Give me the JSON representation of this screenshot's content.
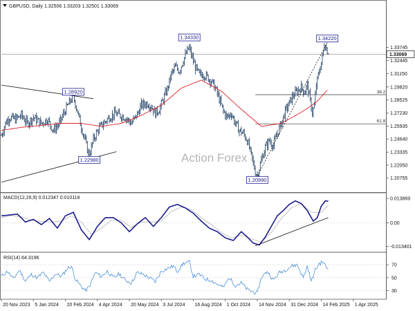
{
  "chart_data": [
    {
      "type": "candlestick",
      "header": "GBPUSD, Daily  1.32506 1.33203 1.32501 1.33069",
      "watermark": "Action Forex",
      "ylim": [
        1.195,
        1.375
      ],
      "y_ticks": [
        "1.33745",
        "1.32445",
        "1.31150",
        "1.29820",
        "1.28525",
        "1.27230",
        "1.25935",
        "1.24640",
        "1.23335",
        "1.22050",
        "1.20755"
      ],
      "last_price": "1.33069",
      "moving_average_color": "#e0202a",
      "price_path": [
        [
          0,
          1.25
        ],
        [
          4,
          1.262
        ],
        [
          8,
          1.268
        ],
        [
          14,
          1.266
        ],
        [
          20,
          1.27
        ],
        [
          26,
          1.262
        ],
        [
          32,
          1.268
        ],
        [
          40,
          1.262
        ],
        [
          46,
          1.266
        ],
        [
          52,
          1.255
        ],
        [
          58,
          1.262
        ],
        [
          62,
          1.271
        ],
        [
          66,
          1.279
        ],
        [
          70,
          1.286
        ],
        [
          72,
          1.289
        ],
        [
          75,
          1.278
        ],
        [
          79,
          1.262
        ],
        [
          83,
          1.248
        ],
        [
          86,
          1.236
        ],
        [
          88,
          1.23
        ],
        [
          92,
          1.246
        ],
        [
          97,
          1.256
        ],
        [
          102,
          1.262
        ],
        [
          108,
          1.268
        ],
        [
          114,
          1.272
        ],
        [
          118,
          1.27
        ],
        [
          124,
          1.268
        ],
        [
          130,
          1.262
        ],
        [
          136,
          1.271
        ],
        [
          140,
          1.28
        ],
        [
          146,
          1.282
        ],
        [
          150,
          1.279
        ],
        [
          154,
          1.272
        ],
        [
          158,
          1.276
        ],
        [
          162,
          1.286
        ],
        [
          166,
          1.296
        ],
        [
          170,
          1.311
        ],
        [
          174,
          1.318
        ],
        [
          178,
          1.314
        ],
        [
          182,
          1.325
        ],
        [
          186,
          1.334
        ],
        [
          188,
          1.337
        ],
        [
          190,
          1.33
        ],
        [
          194,
          1.318
        ],
        [
          198,
          1.31
        ],
        [
          202,
          1.311
        ],
        [
          206,
          1.308
        ],
        [
          210,
          1.304
        ],
        [
          214,
          1.297
        ],
        [
          218,
          1.286
        ],
        [
          222,
          1.274
        ],
        [
          226,
          1.268
        ],
        [
          230,
          1.272
        ],
        [
          234,
          1.262
        ],
        [
          238,
          1.255
        ],
        [
          242,
          1.252
        ],
        [
          246,
          1.245
        ],
        [
          250,
          1.23
        ],
        [
          254,
          1.214
        ],
        [
          256,
          1.21
        ],
        [
          260,
          1.225
        ],
        [
          264,
          1.238
        ],
        [
          268,
          1.245
        ],
        [
          272,
          1.24
        ],
        [
          276,
          1.252
        ],
        [
          280,
          1.262
        ],
        [
          284,
          1.274
        ],
        [
          288,
          1.282
        ],
        [
          292,
          1.29
        ],
        [
          296,
          1.294
        ],
        [
          300,
          1.298
        ],
        [
          303,
          1.293
        ],
        [
          306,
          1.3
        ],
        [
          309,
          1.284
        ],
        [
          311,
          1.273
        ],
        [
          313,
          1.279
        ],
        [
          315,
          1.3
        ],
        [
          318,
          1.314
        ],
        [
          321,
          1.327
        ],
        [
          323,
          1.341
        ],
        [
          325,
          1.337
        ],
        [
          327,
          1.331
        ]
      ],
      "ma_path": [
        [
          0,
          1.255
        ],
        [
          20,
          1.258
        ],
        [
          40,
          1.26
        ],
        [
          60,
          1.262
        ],
        [
          80,
          1.262
        ],
        [
          100,
          1.259
        ],
        [
          120,
          1.262
        ],
        [
          140,
          1.27
        ],
        [
          160,
          1.28
        ],
        [
          180,
          1.297
        ],
        [
          200,
          1.305
        ],
        [
          220,
          1.294
        ],
        [
          240,
          1.276
        ],
        [
          260,
          1.259
        ],
        [
          280,
          1.262
        ],
        [
          300,
          1.273
        ],
        [
          315,
          1.283
        ],
        [
          327,
          1.296
        ]
      ],
      "labels": [
        {
          "text": "1.28920",
          "x": 72,
          "y": 1.2892
        },
        {
          "text": "1.22980",
          "x": 88,
          "y": 1.2298
        },
        {
          "text": "1.34330",
          "x": 188,
          "y": 1.3433
        },
        {
          "text": "1.20990",
          "x": 256,
          "y": 1.2099
        },
        {
          "text": "1.34220",
          "x": 326,
          "y": 1.3422
        }
      ],
      "fib_levels": [
        {
          "label": "38.2",
          "value": 1.2905
        },
        {
          "label": "61.8",
          "value": 1.2615
        }
      ],
      "horizontal_line": 1.3307,
      "trendlines": [
        {
          "from": [
            0,
            1.3
          ],
          "to": [
            92,
            1.2865
          ]
        },
        {
          "from": [
            0,
            1.2035
          ],
          "to": [
            115,
            1.2338
          ]
        },
        {
          "from": [
            256,
            1.2099
          ],
          "to": [
            326,
            1.3422
          ]
        }
      ]
    },
    {
      "type": "line",
      "header": "MACD(12,26,9) 0.012347 0.010118",
      "ylim": [
        -0.0155,
        0.0155
      ],
      "y_ticks": [
        "0.013869",
        "0.00",
        "-0.013401"
      ],
      "macd_color": "#1a1a8c",
      "signal_color": "#bbbbbb",
      "macd": [
        [
          0,
          0.004
        ],
        [
          8,
          0.0045
        ],
        [
          16,
          0.005
        ],
        [
          24,
          0.0005
        ],
        [
          32,
          0.002
        ],
        [
          40,
          -0.001
        ],
        [
          48,
          0.0025
        ],
        [
          56,
          -0.003
        ],
        [
          64,
          0.004
        ],
        [
          72,
          0.006
        ],
        [
          80,
          -0.004
        ],
        [
          88,
          -0.0095
        ],
        [
          96,
          -0.002
        ],
        [
          104,
          0.003
        ],
        [
          112,
          0.003
        ],
        [
          120,
          0.0
        ],
        [
          128,
          -0.005
        ],
        [
          136,
          -0.0005
        ],
        [
          144,
          0.003
        ],
        [
          152,
          -0.002
        ],
        [
          160,
          0.003
        ],
        [
          168,
          0.009
        ],
        [
          176,
          0.0105
        ],
        [
          184,
          0.0085
        ],
        [
          192,
          0.0055
        ],
        [
          200,
          0.001
        ],
        [
          208,
          -0.003
        ],
        [
          216,
          -0.005
        ],
        [
          224,
          -0.0085
        ],
        [
          232,
          -0.01
        ],
        [
          240,
          -0.005
        ],
        [
          246,
          -0.008
        ],
        [
          252,
          -0.0115
        ],
        [
          258,
          -0.0125
        ],
        [
          264,
          -0.008
        ],
        [
          270,
          -0.002
        ],
        [
          276,
          0.004
        ],
        [
          282,
          0.007
        ],
        [
          288,
          0.0105
        ],
        [
          294,
          0.0125
        ],
        [
          300,
          0.011
        ],
        [
          306,
          0.007
        ],
        [
          312,
          0.001
        ],
        [
          316,
          0.003
        ],
        [
          320,
          0.0095
        ],
        [
          324,
          0.0125
        ],
        [
          327,
          0.0123
        ]
      ],
      "signal": [
        [
          0,
          0.003
        ],
        [
          10,
          0.0042
        ],
        [
          20,
          0.0035
        ],
        [
          30,
          0.0015
        ],
        [
          40,
          0.0008
        ],
        [
          50,
          0.0005
        ],
        [
          60,
          0.001
        ],
        [
          70,
          0.004
        ],
        [
          80,
          0.0005
        ],
        [
          90,
          -0.0065
        ],
        [
          100,
          -0.003
        ],
        [
          110,
          0.0015
        ],
        [
          120,
          0.0015
        ],
        [
          130,
          -0.0025
        ],
        [
          140,
          0.0005
        ],
        [
          150,
          0.0005
        ],
        [
          160,
          0.001
        ],
        [
          170,
          0.0065
        ],
        [
          180,
          0.009
        ],
        [
          190,
          0.0075
        ],
        [
          200,
          0.003
        ],
        [
          210,
          -0.001
        ],
        [
          220,
          -0.0055
        ],
        [
          230,
          -0.0085
        ],
        [
          240,
          -0.007
        ],
        [
          250,
          -0.009
        ],
        [
          260,
          -0.011
        ],
        [
          270,
          -0.0055
        ],
        [
          280,
          0.0025
        ],
        [
          290,
          0.0085
        ],
        [
          300,
          0.011
        ],
        [
          310,
          0.006
        ],
        [
          320,
          0.006
        ],
        [
          327,
          0.0101
        ]
      ],
      "trendline": {
        "from": [
          254,
          -0.013
        ],
        "to": [
          327,
          0.003
        ]
      }
    },
    {
      "type": "line",
      "header": "RSI(14) 64.3196",
      "ylim": [
        20,
        85
      ],
      "y_ticks": [
        "70",
        "50",
        "30"
      ],
      "rsi_color": "#4a90d9",
      "rsi": [
        [
          0,
          52
        ],
        [
          6,
          60
        ],
        [
          12,
          48
        ],
        [
          18,
          62
        ],
        [
          24,
          45
        ],
        [
          30,
          55
        ],
        [
          36,
          50
        ],
        [
          42,
          58
        ],
        [
          48,
          44
        ],
        [
          54,
          56
        ],
        [
          60,
          52
        ],
        [
          66,
          64
        ],
        [
          70,
          68
        ],
        [
          74,
          48
        ],
        [
          78,
          40
        ],
        [
          84,
          30
        ],
        [
          88,
          36
        ],
        [
          94,
          58
        ],
        [
          100,
          52
        ],
        [
          106,
          60
        ],
        [
          112,
          50
        ],
        [
          118,
          56
        ],
        [
          124,
          46
        ],
        [
          130,
          42
        ],
        [
          136,
          58
        ],
        [
          142,
          55
        ],
        [
          148,
          50
        ],
        [
          154,
          44
        ],
        [
          160,
          60
        ],
        [
          166,
          64
        ],
        [
          172,
          68
        ],
        [
          176,
          60
        ],
        [
          182,
          72
        ],
        [
          188,
          74
        ],
        [
          192,
          52
        ],
        [
          198,
          55
        ],
        [
          204,
          48
        ],
        [
          210,
          46
        ],
        [
          216,
          40
        ],
        [
          222,
          35
        ],
        [
          228,
          50
        ],
        [
          234,
          38
        ],
        [
          240,
          42
        ],
        [
          246,
          32
        ],
        [
          252,
          28
        ],
        [
          256,
          26
        ],
        [
          260,
          50
        ],
        [
          266,
          60
        ],
        [
          272,
          46
        ],
        [
          278,
          58
        ],
        [
          284,
          62
        ],
        [
          290,
          68
        ],
        [
          296,
          70
        ],
        [
          302,
          50
        ],
        [
          306,
          68
        ],
        [
          310,
          44
        ],
        [
          314,
          62
        ],
        [
          318,
          72
        ],
        [
          322,
          74
        ],
        [
          325,
          66
        ],
        [
          327,
          64
        ]
      ]
    }
  ],
  "x_axis": {
    "labels": [
      "20 Nov 2023",
      "5 Jan 2024",
      "20 Feb 2024",
      "4 Apr 2024",
      "20 May 2024",
      "3 Jul 2024",
      "16 Aug 2024",
      "1 Oct 2024",
      "14 Nov 2024",
      "31 Dec 2024",
      "14 Feb 2025",
      "1 Apr 2025"
    ],
    "label_bars": [
      0,
      32,
      64,
      96,
      128,
      160,
      192,
      224,
      256,
      288,
      320,
      352
    ],
    "bars_total": 384
  }
}
